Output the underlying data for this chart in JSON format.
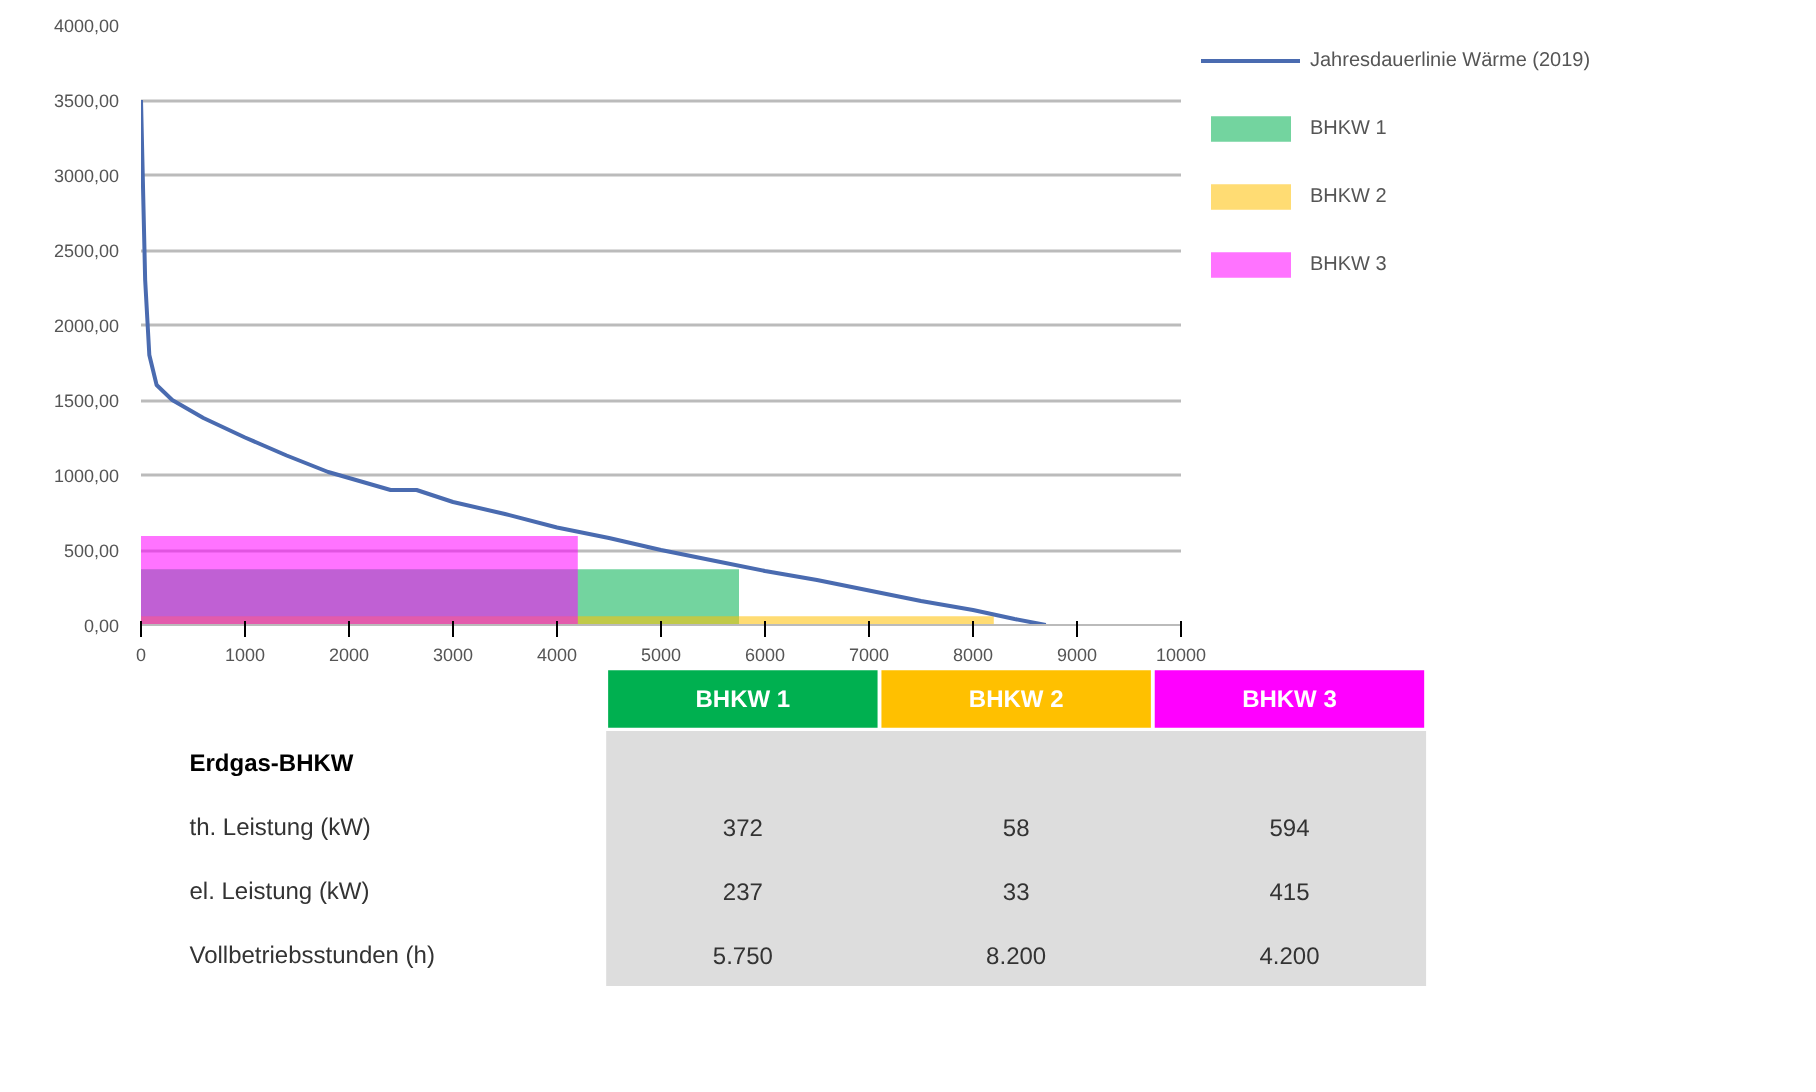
{
  "chart_data": [
    {
      "type": "line",
      "xlim": [
        0,
        10000
      ],
      "ylim": [
        0,
        4000
      ],
      "xticks": [
        0,
        1000,
        2000,
        3000,
        4000,
        5000,
        6000,
        7000,
        8000,
        9000,
        10000
      ],
      "yticks": [
        {
          "value": 0,
          "label": "0,00"
        },
        {
          "value": 500,
          "label": "500,00"
        },
        {
          "value": 1000,
          "label": "1000,00"
        },
        {
          "value": 1500,
          "label": "1500,00"
        },
        {
          "value": 2000,
          "label": "2000,00"
        },
        {
          "value": 2500,
          "label": "2500,00"
        },
        {
          "value": 3000,
          "label": "3000,00"
        },
        {
          "value": 3500,
          "label": "3500,00"
        },
        {
          "value": 4000,
          "label": "4000,00"
        }
      ],
      "grid": "y",
      "legend": "top right",
      "series": [
        {
          "name": "Jahresdauerlinie Wärme (2019)",
          "type": "line",
          "color": "#4a6bb0",
          "x": [
            0,
            40,
            80,
            150,
            300,
            600,
            1000,
            1400,
            1800,
            2100,
            2400,
            2650,
            3000,
            3500,
            4000,
            4500,
            5000,
            5500,
            6000,
            6500,
            7000,
            7500,
            8000,
            8400,
            8700
          ],
          "values": [
            3500,
            2300,
            1800,
            1600,
            1500,
            1380,
            1250,
            1130,
            1020,
            960,
            900,
            900,
            820,
            740,
            650,
            580,
            500,
            430,
            360,
            300,
            230,
            160,
            100,
            40,
            0
          ]
        },
        {
          "name": "BHKW 1",
          "type": "area",
          "color": "#00b050",
          "x": [
            0,
            5750
          ],
          "values": [
            372,
            372
          ]
        },
        {
          "name": "BHKW 2",
          "type": "area",
          "color": "#ffc000",
          "x": [
            0,
            8200
          ],
          "values": [
            58,
            58
          ]
        },
        {
          "name": "BHKW 3",
          "type": "area",
          "color": "#ff00ff",
          "x": [
            0,
            4200
          ],
          "values": [
            594,
            594
          ]
        }
      ]
    },
    {
      "type": "other",
      "title": "Erdgas-BHKW",
      "categories": [
        "BHKW 1",
        "BHKW 2",
        "BHKW 3"
      ],
      "colors": [
        "#00b050",
        "#ffc000",
        "#ff00ff"
      ],
      "y_categories": [
        "th. Leistung (kW)",
        "el. Leistung (kW)",
        "Vollbetriebsstunden (h)"
      ],
      "cell_labels": [
        [
          "372",
          "58",
          "594"
        ],
        [
          "237",
          "33",
          "415"
        ],
        [
          "5.750",
          "8.200",
          "4.200"
        ]
      ]
    }
  ]
}
